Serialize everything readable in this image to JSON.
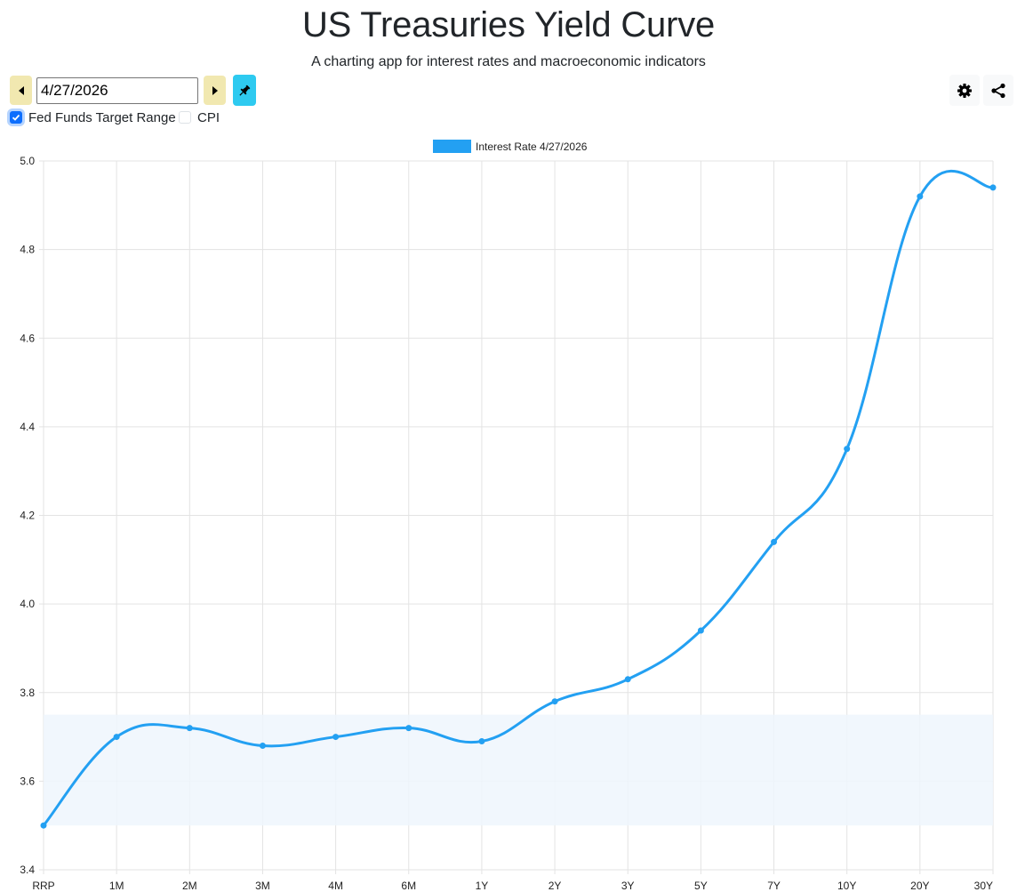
{
  "header": {
    "title": "US Treasuries Yield Curve",
    "subtitle": "A charting app for interest rates and macroeconomic indicators"
  },
  "controls": {
    "date_value": "4/27/2026",
    "prev_icon": "caret-left-icon",
    "next_icon": "caret-right-icon",
    "pin_icon": "pin-icon",
    "settings_icon": "gear-icon",
    "share_icon": "share-icon",
    "checkboxes": [
      {
        "label": "Fed Funds Target Range",
        "checked": true
      },
      {
        "label": "CPI",
        "checked": false
      }
    ]
  },
  "colors": {
    "line": "#23a0f2",
    "band": "#eef6fd",
    "nav_button": "#f1e8b0",
    "pin_button": "#2ecaf0",
    "checkbox": "#0d6efd"
  },
  "chart_data": {
    "type": "line",
    "categories": [
      "RRP",
      "1M",
      "2M",
      "3M",
      "4M",
      "6M",
      "1Y",
      "2Y",
      "3Y",
      "5Y",
      "7Y",
      "10Y",
      "20Y",
      "30Y"
    ],
    "series": [
      {
        "name": "Interest Rate 4/27/2026",
        "values": [
          3.5,
          3.7,
          3.72,
          3.68,
          3.7,
          3.72,
          3.69,
          3.78,
          3.83,
          3.94,
          4.14,
          4.35,
          4.92,
          4.94
        ]
      }
    ],
    "band": {
      "label": "Fed Funds Target Range",
      "low": 3.5,
      "high": 3.75
    },
    "ylim": [
      3.4,
      5.0
    ],
    "yticks": [
      3.4,
      3.6,
      3.8,
      4.0,
      4.2,
      4.4,
      4.6,
      4.8,
      5.0
    ],
    "grid": true,
    "legend_position": "top"
  }
}
